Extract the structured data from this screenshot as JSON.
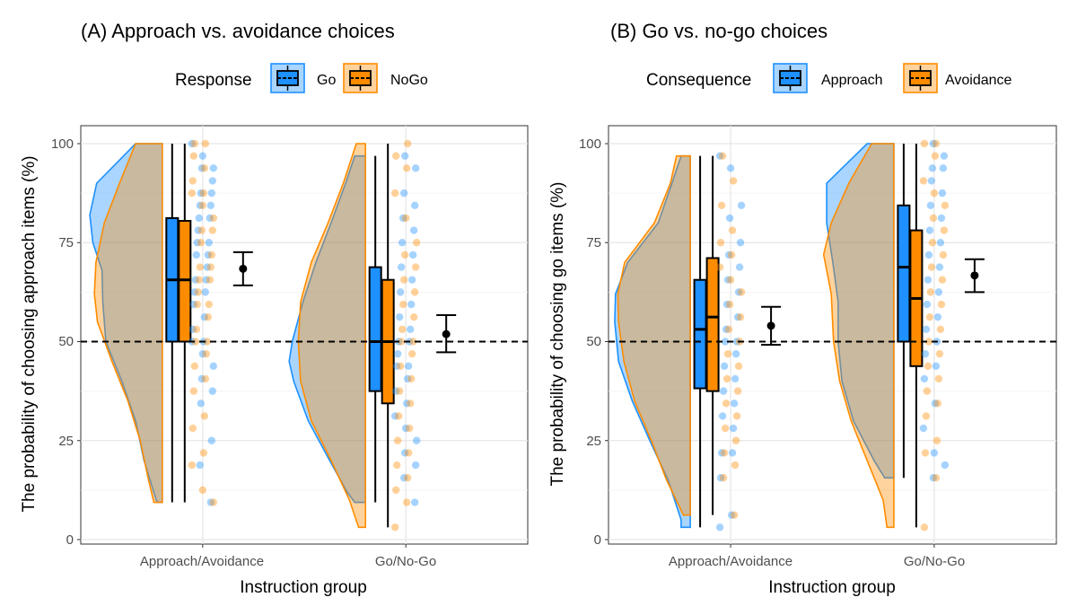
{
  "colors": {
    "blue": "#1E90FF",
    "orange": "#FF8C00"
  },
  "chart_data": [
    {
      "type": "raincloud",
      "title": "(A) Approach vs. avoidance choices",
      "legend_title": "Response",
      "legend_position": "top",
      "series_names": [
        "Go",
        "NoGo"
      ],
      "xlabel": "Instruction group",
      "ylabel": "The probability of choosing approach items (%)",
      "ylim": [
        0,
        100
      ],
      "yticks": [
        "0",
        "25",
        "50",
        "75",
        "100"
      ],
      "reference_line": 50,
      "categories": [
        "Approach/Avoidance",
        "Go/No-Go"
      ],
      "groups": [
        {
          "boxes": [
            {
              "min": 9.4,
              "q1": 50,
              "median": 65.6,
              "q3": 81.2,
              "max": 100
            },
            {
              "min": 9.4,
              "q1": 50,
              "median": 65.6,
              "q3": 80.5,
              "max": 100
            }
          ],
          "density": [
            {
              "y": [
                100,
                90,
                82,
                75,
                68,
                60,
                50,
                40,
                30,
                20,
                10,
                9.4
              ],
              "d": [
                0.35,
                0.86,
                0.95,
                0.91,
                0.79,
                0.78,
                0.74,
                0.53,
                0.35,
                0.24,
                0.08,
                0.06
              ]
            },
            {
              "y": [
                100,
                90,
                80,
                70,
                62,
                55,
                45,
                35,
                25,
                15,
                9.4
              ],
              "d": [
                0.35,
                0.56,
                0.76,
                0.87,
                0.89,
                0.85,
                0.66,
                0.45,
                0.29,
                0.18,
                0.11
              ]
            }
          ],
          "points": [
            [
              100,
              96.9,
              93.8,
              93.8,
              90.6,
              87.5,
              87.5,
              84.4,
              84.4,
              81.2,
              81.2,
              78.1,
              75,
              75,
              71.9,
              71.9,
              68.8,
              65.6,
              65.6,
              62.5,
              62.5,
              59.4,
              56.2,
              53.1,
              50,
              50,
              46.9,
              43.8,
              40.6,
              37.5,
              34.4,
              25,
              18.8,
              9.4
            ],
            [
              100,
              100,
              96.9,
              93.8,
              90.6,
              87.5,
              87.5,
              84.4,
              81.2,
              78.1,
              78.1,
              75,
              71.9,
              68.8,
              68.8,
              65.6,
              65.6,
              62.5,
              59.4,
              59.4,
              56.2,
              53.1,
              50,
              50,
              46.9,
              43.8,
              40.6,
              37.5,
              31.2,
              28.1,
              21.9,
              18.8,
              12.5,
              9.4
            ]
          ],
          "mean": 68.4,
          "ci": [
            64.2,
            72.6
          ]
        },
        {
          "boxes": [
            {
              "min": 9.4,
              "q1": 37.5,
              "median": 50,
              "q3": 68.8,
              "max": 96.9
            },
            {
              "min": 3.1,
              "q1": 34.4,
              "median": 50,
              "q3": 65.6,
              "max": 100
            }
          ],
          "density": [
            {
              "y": [
                96.9,
                90,
                80,
                70,
                60,
                50,
                45,
                40,
                30,
                20,
                12,
                9.4
              ],
              "d": [
                0.14,
                0.26,
                0.45,
                0.65,
                0.82,
                0.96,
                1.0,
                0.94,
                0.75,
                0.47,
                0.24,
                0.14
              ]
            },
            {
              "y": [
                100,
                90,
                80,
                70,
                60,
                50,
                40,
                30,
                20,
                10,
                3.1
              ],
              "d": [
                0.12,
                0.29,
                0.49,
                0.71,
                0.85,
                0.88,
                0.85,
                0.71,
                0.45,
                0.21,
                0.09
              ]
            }
          ],
          "points": [
            [
              96.9,
              93.8,
              87.5,
              84.4,
              81.2,
              78.1,
              75,
              71.9,
              68.8,
              65.6,
              62.5,
              59.4,
              56.2,
              53.1,
              50,
              50,
              46.9,
              43.8,
              43.8,
              40.6,
              37.5,
              34.4,
              31.2,
              28.1,
              25,
              21.9,
              18.8,
              15.6,
              9.4
            ],
            [
              100,
              96.9,
              93.8,
              87.5,
              81.2,
              75,
              71.9,
              68.8,
              65.6,
              62.5,
              59.4,
              56.2,
              53.1,
              50,
              50,
              46.9,
              43.8,
              40.6,
              37.5,
              34.4,
              31.2,
              28.1,
              25,
              21.9,
              18.8,
              15.6,
              12.5,
              9.4,
              3.1
            ]
          ],
          "mean": 51.9,
          "ci": [
            47.3,
            56.7
          ]
        }
      ]
    },
    {
      "type": "raincloud",
      "title": "(B) Go vs. no-go choices",
      "legend_title": "Consequence",
      "legend_position": "top",
      "series_names": [
        "Approach",
        "Avoidance"
      ],
      "xlabel": "Instruction group",
      "ylabel": "The probability of choosing go items (%)",
      "ylim": [
        0,
        100
      ],
      "yticks": [
        "0",
        "25",
        "50",
        "75",
        "100"
      ],
      "reference_line": 50,
      "categories": [
        "Approach/Avoidance",
        "Go/No-Go"
      ],
      "groups": [
        {
          "boxes": [
            {
              "min": 3.1,
              "q1": 38.2,
              "median": 53.1,
              "q3": 65.6,
              "max": 96.9
            },
            {
              "min": 6.2,
              "q1": 37.5,
              "median": 56.2,
              "q3": 71.1,
              "max": 96.9
            }
          ],
          "density": [
            {
              "y": [
                96.9,
                90,
                80,
                70,
                62,
                55,
                45,
                35,
                25,
                15,
                5,
                3.1
              ],
              "d": [
                0.12,
                0.24,
                0.42,
                0.82,
                0.98,
                0.99,
                0.94,
                0.76,
                0.53,
                0.29,
                0.12,
                0.12
              ]
            },
            {
              "y": [
                96.9,
                90,
                80,
                70,
                62,
                55,
                45,
                35,
                25,
                15,
                6.2
              ],
              "d": [
                0.18,
                0.26,
                0.47,
                0.86,
                0.95,
                0.94,
                0.87,
                0.73,
                0.51,
                0.31,
                0.09
              ]
            }
          ],
          "points": [
            [
              96.9,
              93.8,
              84.4,
              81.2,
              75,
              71.9,
              68.8,
              65.6,
              62.5,
              59.4,
              56.2,
              53.1,
              50,
              50,
              46.9,
              43.8,
              40.6,
              37.5,
              34.4,
              31.2,
              28.1,
              21.9,
              21.9,
              15.6,
              6.2,
              3.1
            ],
            [
              96.9,
              90.6,
              84.4,
              78.1,
              75,
              71.9,
              68.8,
              65.6,
              62.5,
              59.4,
              56.2,
              53.1,
              50,
              46.9,
              43.8,
              40.6,
              37.5,
              34.4,
              31.2,
              28.1,
              25,
              21.9,
              18.8,
              15.6,
              6.2
            ]
          ],
          "mean": 54.0,
          "ci": [
            49.2,
            58.8
          ]
        },
        {
          "boxes": [
            {
              "min": 15.6,
              "q1": 50,
              "median": 68.8,
              "q3": 84.4,
              "max": 100
            },
            {
              "min": 3.1,
              "q1": 43.8,
              "median": 60.9,
              "q3": 78.1,
              "max": 100
            }
          ],
          "density": [
            {
              "y": [
                100,
                90,
                80,
                70,
                60,
                50,
                40,
                30,
                20,
                15.6
              ],
              "d": [
                0.35,
                0.88,
                0.88,
                0.8,
                0.73,
                0.73,
                0.68,
                0.53,
                0.26,
                0.12
              ]
            },
            {
              "y": [
                100,
                90,
                80,
                72,
                62,
                50,
                40,
                30,
                20,
                10,
                3.1
              ],
              "d": [
                0.29,
                0.59,
                0.82,
                0.92,
                0.82,
                0.79,
                0.71,
                0.56,
                0.35,
                0.14,
                0.09
              ]
            }
          ],
          "points": [
            [
              100,
              96.9,
              93.8,
              93.8,
              90.6,
              87.5,
              84.4,
              81.2,
              78.1,
              75,
              71.9,
              68.8,
              65.6,
              62.5,
              59.4,
              56.2,
              53.1,
              50,
              46.9,
              43.8,
              40.6,
              34.4,
              28.1,
              21.9,
              18.8,
              15.6
            ],
            [
              100,
              100,
              96.9,
              90.6,
              87.5,
              84.4,
              81.2,
              78.1,
              75,
              71.9,
              68.8,
              65.6,
              62.5,
              59.4,
              56.2,
              53.1,
              50,
              46.9,
              43.8,
              40.6,
              37.5,
              34.4,
              31.2,
              25,
              21.9,
              15.6,
              3.1
            ]
          ],
          "mean": 66.7,
          "ci": [
            62.5,
            70.8
          ]
        }
      ]
    }
  ]
}
